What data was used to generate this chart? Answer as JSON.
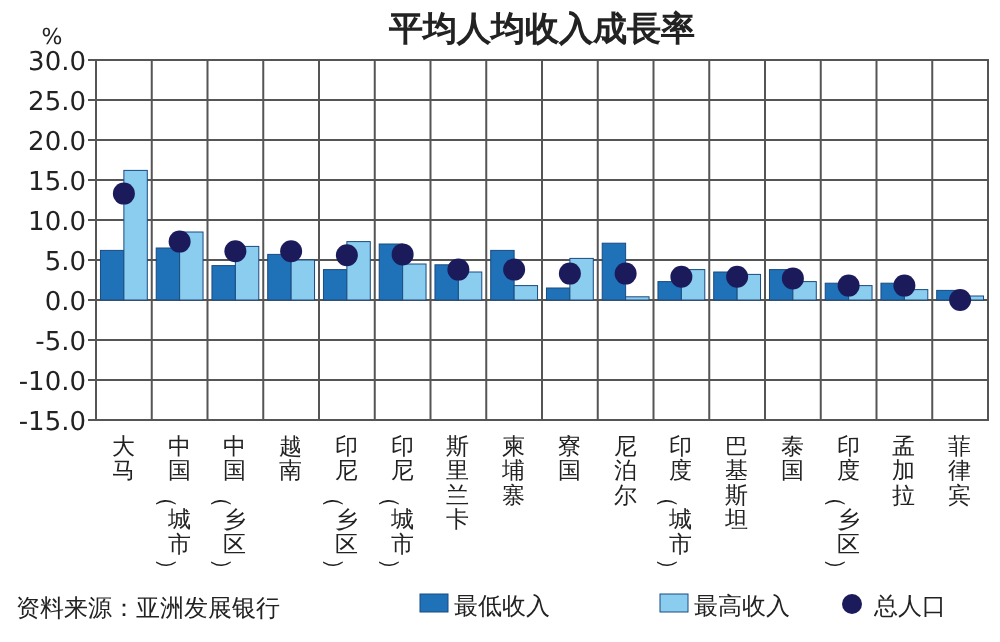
{
  "chart_data": {
    "type": "bar",
    "title": "平均人均收入成長率",
    "ylabel": "%",
    "categories": [
      "大马",
      "中国（城市）",
      "中国（乡区）",
      "越南",
      "印尼（乡区）",
      "印尼（城市）",
      "斯里兰卡",
      "柬埔寨",
      "寮国",
      "尼泊尔",
      "印度（城市）",
      "巴基斯坦",
      "泰国",
      "印度（乡区）",
      "孟加拉",
      "菲律宾"
    ],
    "series": [
      {
        "name": "最低收入",
        "color": "#1f72b8",
        "values": [
          6.2,
          6.5,
          4.3,
          5.7,
          3.8,
          7.0,
          4.4,
          6.2,
          1.5,
          7.1,
          2.3,
          3.5,
          3.8,
          2.1,
          2.1,
          1.2
        ]
      },
      {
        "name": "最高收入",
        "color": "#8acdee",
        "values": [
          16.2,
          8.5,
          6.7,
          5.0,
          7.3,
          4.5,
          3.5,
          1.8,
          5.2,
          0.4,
          3.8,
          3.2,
          2.3,
          1.8,
          1.3,
          0.5
        ]
      },
      {
        "name": "总人口",
        "type": "scatter",
        "color": "#1b1b5c",
        "marker": "circle",
        "values": [
          13.3,
          7.3,
          6.1,
          6.1,
          5.6,
          5.7,
          3.8,
          3.8,
          3.3,
          3.3,
          2.9,
          2.9,
          2.7,
          1.8,
          1.8,
          0.0
        ]
      }
    ],
    "ylim": [
      -15,
      30
    ],
    "yticks": [
      {
        "value": -15,
        "label": "-15.0"
      },
      {
        "value": -10,
        "label": "-10.0"
      },
      {
        "value": -5,
        "label": "-5.0"
      },
      {
        "value": 0,
        "label": "0.0"
      },
      {
        "value": 5,
        "label": "5.0"
      },
      {
        "value": 10,
        "label": "10.0"
      },
      {
        "value": 15,
        "label": "15.0"
      },
      {
        "value": 20,
        "label": "20.0"
      },
      {
        "value": 25,
        "label": "25.0"
      },
      {
        "value": 30,
        "label": "30.0"
      }
    ],
    "grid": true,
    "legend": "bottom",
    "annotations": [
      "资料来源：亚洲发展银行"
    ]
  }
}
